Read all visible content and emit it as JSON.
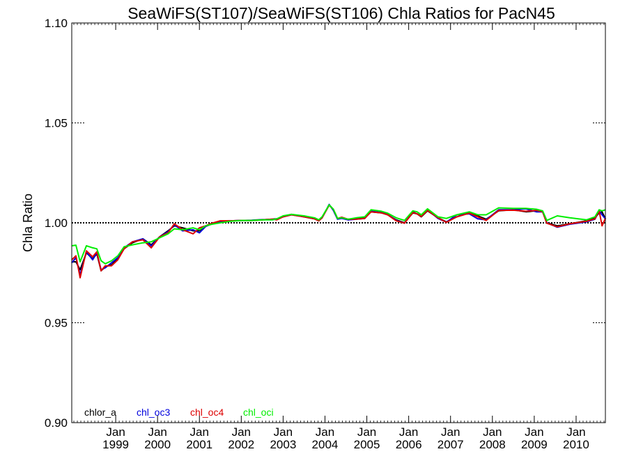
{
  "chart_data": {
    "type": "line",
    "title": "SeaWiFS(ST107)/SeaWiFS(ST106)  Chla Ratios for PacN45",
    "xlabel": "",
    "ylabel": "Chla Ratio",
    "xlim": [
      1997.95,
      2010.7
    ],
    "ylim": [
      0.9,
      1.1
    ],
    "yticks": [
      {
        "value": 0.9,
        "label": "0.90"
      },
      {
        "value": 0.95,
        "label": "0.95"
      },
      {
        "value": 1.0,
        "label": "1.00"
      },
      {
        "value": 1.05,
        "label": "1.05"
      },
      {
        "value": 1.1,
        "label": "1.10"
      }
    ],
    "xticks": [
      {
        "value": 1999.0,
        "label_top": "Jan",
        "label_bottom": "1999"
      },
      {
        "value": 2000.0,
        "label_top": "Jan",
        "label_bottom": "2000"
      },
      {
        "value": 2001.0,
        "label_top": "Jan",
        "label_bottom": "2001"
      },
      {
        "value": 2002.0,
        "label_top": "Jan",
        "label_bottom": "2002"
      },
      {
        "value": 2003.0,
        "label_top": "Jan",
        "label_bottom": "2003"
      },
      {
        "value": 2004.0,
        "label_top": "Jan",
        "label_bottom": "2004"
      },
      {
        "value": 2005.0,
        "label_top": "Jan",
        "label_bottom": "2005"
      },
      {
        "value": 2006.0,
        "label_top": "Jan",
        "label_bottom": "2006"
      },
      {
        "value": 2007.0,
        "label_top": "Jan",
        "label_bottom": "2007"
      },
      {
        "value": 2008.0,
        "label_top": "Jan",
        "label_bottom": "2008"
      },
      {
        "value": 2009.0,
        "label_top": "Jan",
        "label_bottom": "2009"
      },
      {
        "value": 2010.0,
        "label_top": "Jan",
        "label_bottom": "2010"
      }
    ],
    "reference_line": 1.0,
    "legend_placement": "bottom-left",
    "series": [
      {
        "name": "chlor_a",
        "color": "#000000",
        "x": [
          1997.95,
          1998.05,
          1998.15,
          1998.3,
          1998.45,
          1998.55,
          1998.65,
          1998.75,
          1998.9,
          1999.05,
          1999.2,
          1999.4,
          1999.65,
          1999.85,
          2000.05,
          2000.25,
          2000.4,
          2000.6,
          2000.85,
          2001.0,
          2001.15,
          2001.3,
          2001.5,
          2001.75,
          2002.0,
          2002.25,
          2002.5,
          2002.75,
          2002.85,
          2003.0,
          2003.2,
          2003.5,
          2003.75,
          2003.85,
          2003.93,
          2004.1,
          2004.2,
          2004.3,
          2004.4,
          2004.55,
          2004.75,
          2004.95,
          2005.1,
          2005.35,
          2005.5,
          2005.7,
          2005.9,
          2006.1,
          2006.2,
          2006.3,
          2006.45,
          2006.7,
          2006.9,
          2007.15,
          2007.45,
          2007.65,
          2007.85,
          2008.15,
          2008.5,
          2008.8,
          2009.05,
          2009.2,
          2009.3,
          2009.55,
          2009.85,
          2010.25,
          2010.45,
          2010.55,
          2010.62,
          2010.7
        ],
        "values": [
          0.9805,
          0.9805,
          0.9765,
          0.985,
          0.982,
          0.9845,
          0.976,
          0.978,
          0.979,
          0.982,
          0.987,
          0.99,
          0.992,
          0.989,
          0.993,
          0.996,
          0.9985,
          0.9975,
          0.996,
          0.996,
          0.9985,
          0.9998,
          1.0008,
          1.001,
          1.0012,
          1.0012,
          1.0015,
          1.0018,
          1.002,
          1.0032,
          1.0042,
          1.003,
          1.002,
          1.001,
          1.0025,
          1.009,
          1.0065,
          1.002,
          1.0025,
          1.0015,
          1.002,
          1.0025,
          1.0055,
          1.005,
          1.004,
          1.0015,
          1.0,
          1.005,
          1.0045,
          1.003,
          1.006,
          1.0025,
          1.0005,
          1.003,
          1.005,
          1.0035,
          1.0018,
          1.006,
          1.0065,
          1.0055,
          1.006,
          1.0055,
          1.0,
          0.9985,
          0.9995,
          1.001,
          1.0025,
          1.005,
          1.0055,
          1.002
        ]
      },
      {
        "name": "chl_oc3",
        "color": "#0000dd",
        "x": [
          1997.95,
          1998.05,
          1998.15,
          1998.3,
          1998.45,
          1998.55,
          1998.65,
          1998.75,
          1998.9,
          1999.05,
          1999.2,
          1999.4,
          1999.65,
          1999.85,
          2000.05,
          2000.25,
          2000.4,
          2000.6,
          2000.85,
          2001.0,
          2001.15,
          2001.3,
          2001.5,
          2001.75,
          2002.0,
          2002.25,
          2002.5,
          2002.75,
          2002.85,
          2003.0,
          2003.2,
          2003.5,
          2003.75,
          2003.85,
          2003.93,
          2004.1,
          2004.2,
          2004.3,
          2004.4,
          2004.55,
          2004.75,
          2004.95,
          2005.1,
          2005.35,
          2005.5,
          2005.7,
          2005.9,
          2006.1,
          2006.2,
          2006.3,
          2006.45,
          2006.7,
          2006.9,
          2007.15,
          2007.45,
          2007.65,
          2007.85,
          2008.15,
          2008.5,
          2008.8,
          2009.05,
          2009.2,
          2009.3,
          2009.55,
          2009.85,
          2010.25,
          2010.45,
          2010.55,
          2010.62,
          2010.7
        ],
        "values": [
          0.98,
          0.9825,
          0.974,
          0.9855,
          0.9815,
          0.985,
          0.9765,
          0.9775,
          0.98,
          0.9825,
          0.9875,
          0.9905,
          0.992,
          0.9885,
          0.993,
          0.9955,
          0.999,
          0.996,
          0.9965,
          0.995,
          0.9982,
          0.9995,
          1.0005,
          1.001,
          1.0012,
          1.0013,
          1.0016,
          1.0016,
          1.002,
          1.003,
          1.004,
          1.003,
          1.002,
          1.0012,
          1.0025,
          1.0092,
          1.0062,
          1.0018,
          1.0022,
          1.0015,
          1.0018,
          1.0022,
          1.0058,
          1.0052,
          1.0042,
          1.0012,
          0.9998,
          1.0055,
          1.0045,
          1.0035,
          1.0065,
          1.0022,
          1.0003,
          1.004,
          1.0045,
          1.002,
          1.0015,
          1.0065,
          1.0065,
          1.007,
          1.0055,
          1.0055,
          1.0,
          0.9978,
          0.9993,
          1.0005,
          1.0018,
          1.006,
          1.004,
          1.002
        ]
      },
      {
        "name": "chl_oc4",
        "color": "#dd0000",
        "x": [
          1997.95,
          1998.05,
          1998.15,
          1998.3,
          1998.45,
          1998.55,
          1998.65,
          1998.75,
          1998.9,
          1999.05,
          1999.2,
          1999.4,
          1999.65,
          1999.85,
          2000.05,
          2000.25,
          2000.4,
          2000.6,
          2000.85,
          2001.0,
          2001.15,
          2001.3,
          2001.5,
          2001.75,
          2002.0,
          2002.25,
          2002.5,
          2002.75,
          2002.85,
          2003.0,
          2003.2,
          2003.5,
          2003.75,
          2003.85,
          2003.93,
          2004.1,
          2004.2,
          2004.3,
          2004.4,
          2004.55,
          2004.75,
          2004.95,
          2005.1,
          2005.35,
          2005.5,
          2005.7,
          2005.9,
          2006.1,
          2006.2,
          2006.3,
          2006.45,
          2006.7,
          2006.9,
          2007.15,
          2007.45,
          2007.65,
          2007.85,
          2008.15,
          2008.5,
          2008.8,
          2009.05,
          2009.2,
          2009.3,
          2009.55,
          2009.85,
          2010.25,
          2010.45,
          2010.55,
          2010.62,
          2010.7
        ],
        "values": [
          0.9815,
          0.9835,
          0.9725,
          0.986,
          0.983,
          0.9855,
          0.976,
          0.9785,
          0.9785,
          0.9815,
          0.987,
          0.9905,
          0.9915,
          0.9875,
          0.993,
          0.995,
          0.9995,
          0.9965,
          0.9945,
          0.9975,
          0.9985,
          0.9998,
          1.001,
          1.001,
          1.0012,
          1.0012,
          1.0015,
          1.0018,
          1.0015,
          1.003,
          1.004,
          1.003,
          1.002,
          1.001,
          1.0025,
          1.0088,
          1.0068,
          1.0022,
          1.0028,
          1.0018,
          1.0018,
          1.0022,
          1.0055,
          1.005,
          1.004,
          1.001,
          0.9998,
          1.0052,
          1.0045,
          1.0032,
          1.0062,
          1.0025,
          1.0002,
          1.003,
          1.0048,
          1.003,
          1.0012,
          1.0062,
          1.0063,
          1.0058,
          1.0062,
          1.0055,
          0.9998,
          0.998,
          0.9995,
          1.0008,
          1.002,
          1.006,
          0.9985,
          1.0022
        ]
      },
      {
        "name": "chl_oci",
        "color": "#00ee00",
        "x": [
          1997.95,
          1998.05,
          1998.15,
          1998.3,
          1998.45,
          1998.55,
          1998.65,
          1998.75,
          1998.9,
          1999.05,
          1999.2,
          1999.4,
          1999.65,
          1999.85,
          2000.05,
          2000.25,
          2000.4,
          2000.6,
          2000.85,
          2001.0,
          2001.15,
          2001.3,
          2001.5,
          2001.75,
          2002.0,
          2002.25,
          2002.5,
          2002.75,
          2002.85,
          2003.0,
          2003.2,
          2003.5,
          2003.75,
          2003.85,
          2003.93,
          2004.1,
          2004.2,
          2004.3,
          2004.4,
          2004.55,
          2004.75,
          2004.95,
          2005.1,
          2005.35,
          2005.5,
          2005.7,
          2005.9,
          2006.1,
          2006.2,
          2006.3,
          2006.45,
          2006.7,
          2006.9,
          2007.15,
          2007.45,
          2007.65,
          2007.85,
          2008.15,
          2008.5,
          2008.8,
          2009.05,
          2009.2,
          2009.3,
          2009.55,
          2009.85,
          2010.25,
          2010.45,
          2010.55,
          2010.62,
          2010.7
        ],
        "values": [
          0.9885,
          0.9888,
          0.9805,
          0.9885,
          0.9875,
          0.987,
          0.981,
          0.9795,
          0.981,
          0.9835,
          0.988,
          0.989,
          0.99,
          0.9905,
          0.9925,
          0.9945,
          0.997,
          0.9965,
          0.9975,
          0.9965,
          0.9985,
          0.9993,
          1.0,
          1.0008,
          1.0012,
          1.0012,
          1.0015,
          1.0015,
          1.002,
          1.0035,
          1.0042,
          1.0035,
          1.0025,
          1.0015,
          1.003,
          1.009,
          1.0068,
          1.0022,
          1.0025,
          1.0018,
          1.0025,
          1.003,
          1.0065,
          1.0058,
          1.0048,
          1.0025,
          1.0012,
          1.006,
          1.0055,
          1.004,
          1.007,
          1.003,
          1.0022,
          1.004,
          1.0055,
          1.004,
          1.004,
          1.0075,
          1.0072,
          1.0072,
          1.0068,
          1.006,
          1.0012,
          1.0035,
          1.0025,
          1.0015,
          1.003,
          1.0065,
          1.006,
          1.0065
        ]
      }
    ]
  }
}
